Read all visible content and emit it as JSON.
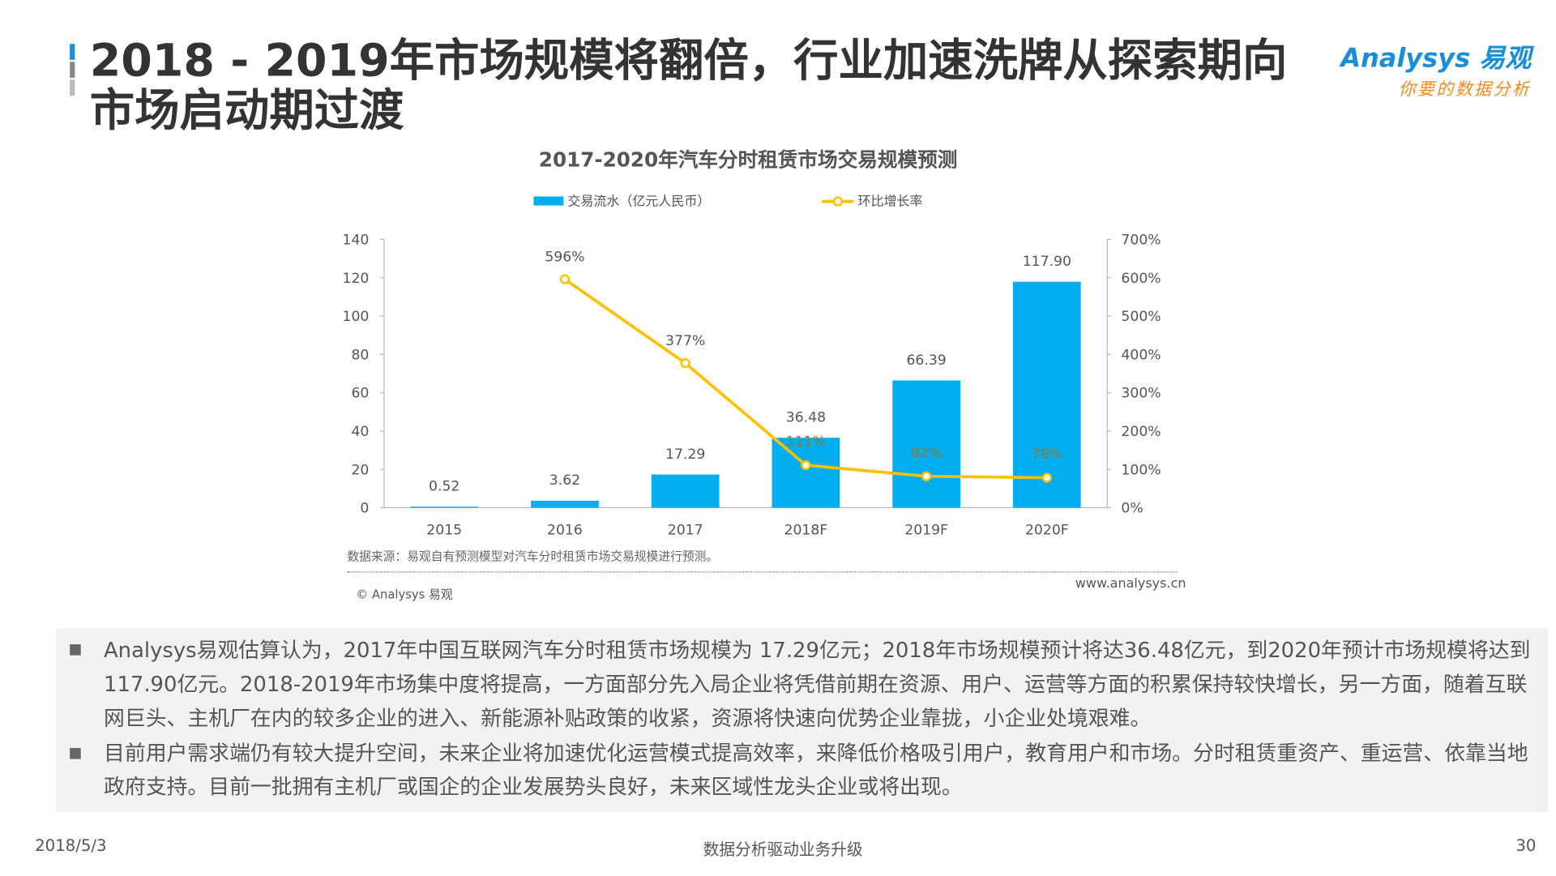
{
  "slide": {
    "title": "2018 - 2019年市场规模将翻倍，行业加速洗牌从探索期向市场启动期过渡",
    "logo_en": "Analysys 易观",
    "logo_cn": "你要的数据分析",
    "source": "数据来源：易观自有预测模型对汽车分时租赁市场交易规模进行预测。",
    "copyright": "© Analysys 易观",
    "website": "www.analysys.cn",
    "bullets": [
      "Analysys易观估算认为，2017年中国互联网汽车分时租赁市场规模为 17.29亿元；2018年市场规模预计将达36.48亿元，到2020年预计市场规模将达到117.90亿元。2018-2019年市场集中度将提高，一方面部分先入局企业将凭借前期在资源、用户、运营等方面的积累保持较快增长，另一方面，随着互联网巨头、主机厂在内的较多企业的进入、新能源补贴政策的收紧，资源将快速向优势企业靠拢，小企业处境艰难。",
      "目前用户需求端仍有较大提升空间，未来企业将加速优化运营模式提高效率，来降低价格吸引用户，教育用户和市场。分时租赁重资产、重运营、依靠当地政府支持。目前一批拥有主机厂或国企的企业发展势头良好，未来区域性龙头企业或将出现。"
    ],
    "date": "2018/5/3",
    "footer": "数据分析驱动业务升级",
    "page_number": "30"
  },
  "chart_data": {
    "type": "bar+line",
    "title": "2017-2020年汽车分时租赁市场交易规模预测",
    "categories": [
      "2015",
      "2016",
      "2017",
      "2018F",
      "2019F",
      "2020F"
    ],
    "series": [
      {
        "name": "交易流水（亿元人民币）",
        "type": "bar",
        "axis": "left",
        "color": "#00aeef",
        "values": [
          0.52,
          3.62,
          17.29,
          36.48,
          66.39,
          117.9
        ],
        "labels": [
          "0.52",
          "3.62",
          "17.29",
          "36.48",
          "66.39",
          "117.90"
        ]
      },
      {
        "name": "环比增长率",
        "type": "line",
        "axis": "right",
        "color": "#ffc000",
        "values": [
          null,
          596,
          377,
          111,
          82,
          78
        ],
        "labels": [
          "",
          "596%",
          "377%",
          "111%",
          "82%",
          "78%"
        ]
      }
    ],
    "y_left": {
      "min": 0,
      "max": 140,
      "ticks": [
        "0",
        "20",
        "40",
        "60",
        "80",
        "100",
        "120",
        "140"
      ]
    },
    "y_right": {
      "min": 0,
      "max": 700,
      "ticks": [
        "0%",
        "100%",
        "200%",
        "300%",
        "400%",
        "500%",
        "600%",
        "700%"
      ]
    },
    "legend_position": "top-center",
    "grid": false
  }
}
